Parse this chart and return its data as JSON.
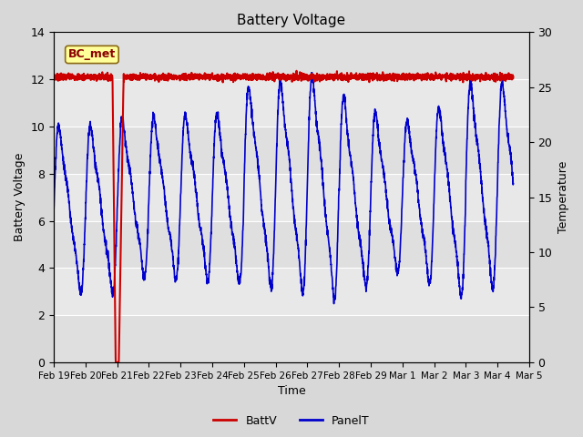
{
  "title": "Battery Voltage",
  "xlabel": "Time",
  "ylabel_left": "Battery Voltage",
  "ylabel_right": "Temperature",
  "ylim_left": [
    0,
    14
  ],
  "ylim_right": [
    0,
    30
  ],
  "yticks_left": [
    0,
    2,
    4,
    6,
    8,
    10,
    12,
    14
  ],
  "yticks_right": [
    0,
    5,
    10,
    15,
    20,
    25,
    30
  ],
  "xtick_labels": [
    "Feb 19",
    "Feb 20",
    "Feb 21",
    "Feb 22",
    "Feb 23",
    "Feb 24",
    "Feb 25",
    "Feb 26",
    "Feb 27",
    "Feb 28",
    "Feb 29",
    "Mar 1",
    "Mar 2",
    "Mar 3",
    "Mar 4",
    "Mar 5"
  ],
  "bg_color": "#d8d8d8",
  "plot_bg_color": "#e8e8e8",
  "battv_color": "#cc0000",
  "panelt_color": "#0000cc",
  "annotation_text": "BC_met",
  "annotation_color": "#8b0000",
  "annotation_bg": "#ffff99",
  "annotation_border": "#8b6914",
  "grid_color": "#ffffff",
  "legend_battv": "BattV",
  "legend_panelt": "PanelT",
  "total_days": 14.5,
  "xlim": [
    0,
    14.5
  ],
  "battv_base": 12.1,
  "battv_noise": 0.07,
  "drop_start": 1.85,
  "drop_bottom": 1.95,
  "drop_end": 2.05
}
